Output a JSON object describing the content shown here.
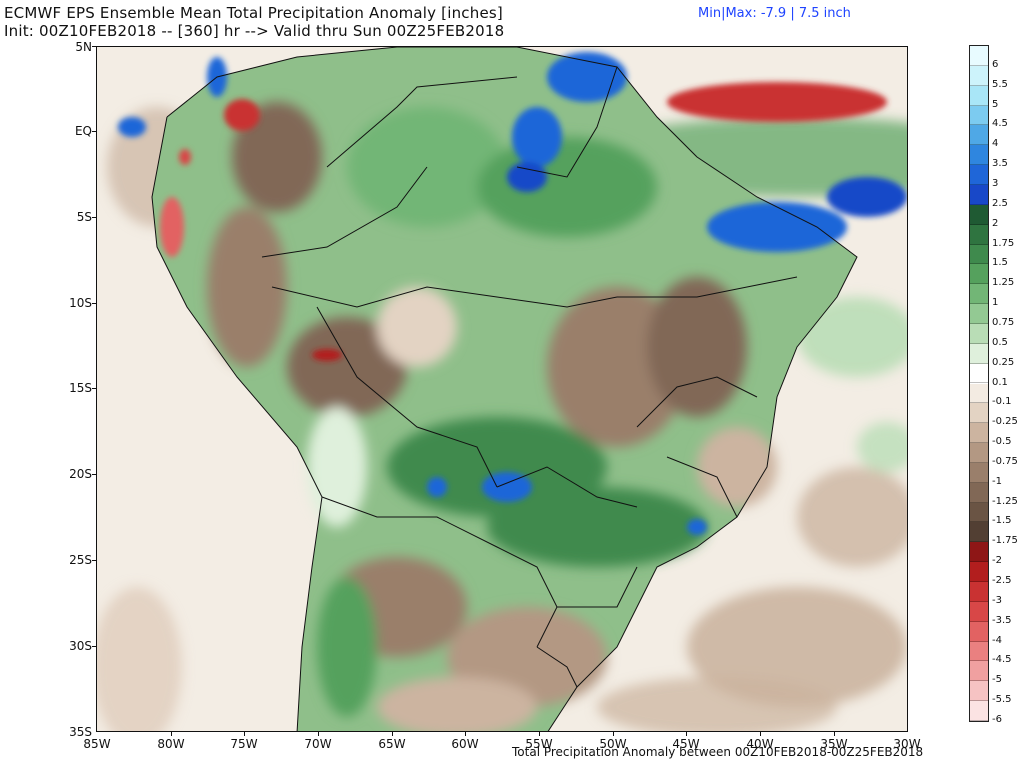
{
  "header": {
    "title_line1": "ECMWF EPS Ensemble Mean Total Precipitation Anomaly [inches]",
    "title_line2": "Init: 00Z10FEB2018 -- [360] hr --> Valid thru Sun 00Z25FEB2018",
    "minmax": "Min|Max: -7.9 | 7.5 inch"
  },
  "footer": "Total Precipitation Anomaly between 00Z10FEB2018-00Z25FEB2018",
  "axes": {
    "lat_labels": [
      "5N",
      "EQ",
      "5S",
      "10S",
      "15S",
      "20S",
      "25S",
      "30S",
      "35S"
    ],
    "lon_labels": [
      "85W",
      "80W",
      "75W",
      "70W",
      "65W",
      "60W",
      "55W",
      "50W",
      "45W",
      "40W",
      "35W",
      "30W"
    ]
  },
  "colorbar": {
    "levels": [
      {
        "label": "6",
        "color": "#e8fbff"
      },
      {
        "label": "5.5",
        "color": "#cdf3fb"
      },
      {
        "label": "5",
        "color": "#a9e6f7"
      },
      {
        "label": "4.5",
        "color": "#7ccbf0"
      },
      {
        "label": "4",
        "color": "#4fa8e6"
      },
      {
        "label": "3.5",
        "color": "#2f86df"
      },
      {
        "label": "3",
        "color": "#1f66d8"
      },
      {
        "label": "2.5",
        "color": "#1848c8"
      },
      {
        "label": "2",
        "color": "#1f5a33"
      },
      {
        "label": "1.75",
        "color": "#2f7440"
      },
      {
        "label": "1.5",
        "color": "#3f8a4d"
      },
      {
        "label": "1.25",
        "color": "#55a15d"
      },
      {
        "label": "1",
        "color": "#72b676"
      },
      {
        "label": "0.75",
        "color": "#93c993"
      },
      {
        "label": "0.5",
        "color": "#b9ddb6"
      },
      {
        "label": "0.25",
        "color": "#dff0dc"
      },
      {
        "label": "0.1",
        "color": "#ffffff"
      },
      {
        "label": "-0.1",
        "color": "#f3ebe2"
      },
      {
        "label": "-0.25",
        "color": "#e3d3c3"
      },
      {
        "label": "-0.5",
        "color": "#ccb4a0"
      },
      {
        "label": "-0.75",
        "color": "#b39883"
      },
      {
        "label": "-1",
        "color": "#9a7f6b"
      },
      {
        "label": "-1.25",
        "color": "#816856"
      },
      {
        "label": "-1.5",
        "color": "#6a5444"
      },
      {
        "label": "-1.75",
        "color": "#523f33"
      },
      {
        "label": "-2",
        "color": "#8e1616"
      },
      {
        "label": "-2.5",
        "color": "#b21e1e"
      },
      {
        "label": "-3",
        "color": "#c93232"
      },
      {
        "label": "-3.5",
        "color": "#d84747"
      },
      {
        "label": "-4",
        "color": "#e26262"
      },
      {
        "label": "-4.5",
        "color": "#ea8080"
      },
      {
        "label": "-5",
        "color": "#f0a0a0"
      },
      {
        "label": "-5.5",
        "color": "#f6c3c3"
      },
      {
        "label": "-6",
        "color": "#fbe3e3"
      }
    ]
  },
  "map": {
    "ocean_color": "#f2ede5",
    "land_base_color": "#8fbf8a"
  }
}
